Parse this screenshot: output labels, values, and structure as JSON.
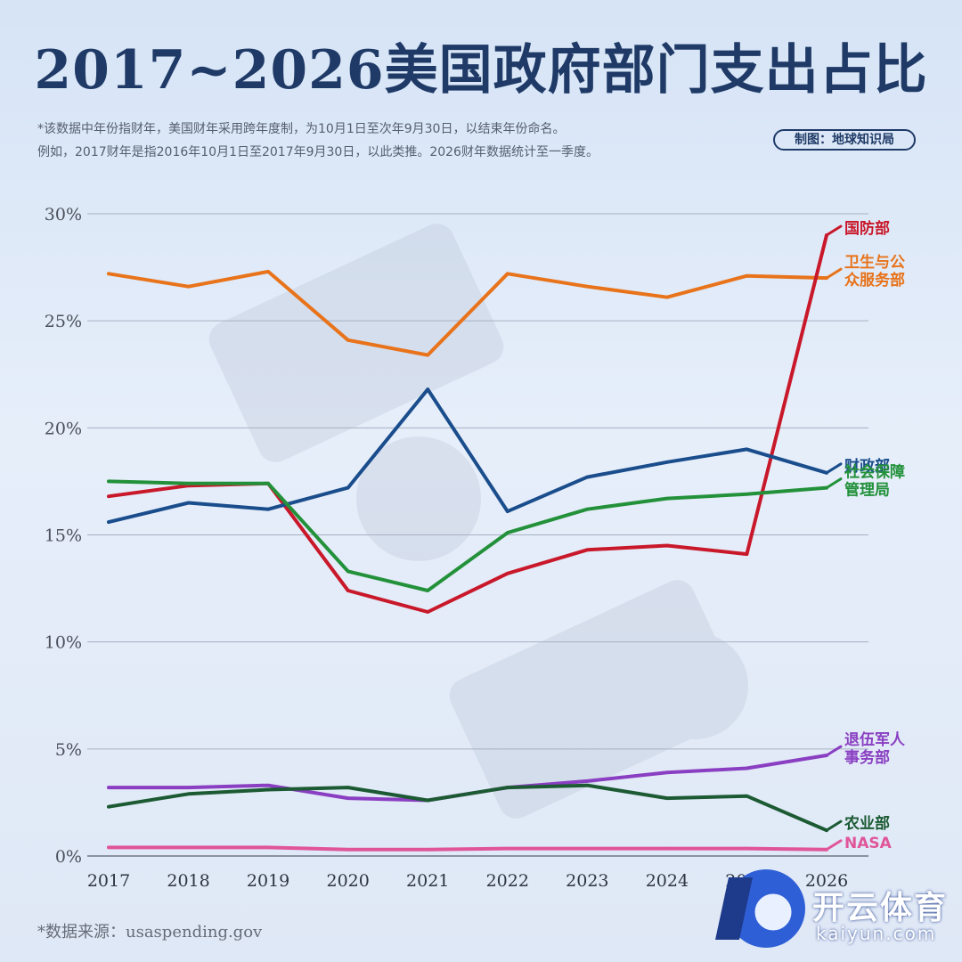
{
  "header": {
    "title": "2017~2026美国政府部门支出占比",
    "note_line1": "*该数据中年份指财年，美国财年采用跨年度制，为10月1日至次年9月30日，以结束年份命名。",
    "note_line2": "例如，2017财年是指2016年10月1日至2017年9月30日，以此类推。2026财年数据统计至一季度。",
    "credit": "制图：地球知识局"
  },
  "footer": {
    "source": "*数据来源：usaspending.gov",
    "logo_text": "开云体育",
    "logo_url": "kaiyun.com"
  },
  "chart_data": {
    "type": "line",
    "x": [
      "2017",
      "2018",
      "2019",
      "2020",
      "2021",
      "2022",
      "2023",
      "2024",
      "2025",
      "2026"
    ],
    "y_ticks": [
      "0%",
      "5%",
      "10%",
      "15%",
      "20%",
      "25%",
      "30%"
    ],
    "ylim": [
      0,
      30
    ],
    "grid": true,
    "series": [
      {
        "name": "卫生与公众服务部",
        "label_lines": [
          "卫生与公",
          "众服务部"
        ],
        "color": "#e8731a",
        "values": [
          27.2,
          26.6,
          27.3,
          24.1,
          23.4,
          27.2,
          26.6,
          26.1,
          27.1,
          27.0
        ]
      },
      {
        "name": "国防部",
        "label_lines": [
          "国防部"
        ],
        "color": "#c8182a",
        "values": [
          16.8,
          17.3,
          17.4,
          12.4,
          11.4,
          13.2,
          14.3,
          14.5,
          14.1,
          29.0
        ]
      },
      {
        "name": "财政部",
        "label_lines": [
          "财政部"
        ],
        "color": "#1a4d8c",
        "values": [
          15.6,
          16.5,
          16.2,
          17.2,
          21.8,
          16.1,
          17.7,
          18.4,
          19.0,
          17.9
        ]
      },
      {
        "name": "社会保障管理局",
        "label_lines": [
          "社会保障",
          "管理局"
        ],
        "color": "#23913a",
        "values": [
          17.5,
          17.4,
          17.4,
          13.3,
          12.4,
          15.1,
          16.2,
          16.7,
          16.9,
          17.2
        ]
      },
      {
        "name": "退伍军人事务部",
        "label_lines": [
          "退伍军人",
          "事务部"
        ],
        "color": "#8a3fc2",
        "values": [
          3.2,
          3.2,
          3.3,
          2.7,
          2.6,
          3.2,
          3.5,
          3.9,
          4.1,
          4.7
        ]
      },
      {
        "name": "农业部",
        "label_lines": [
          "农业部"
        ],
        "color": "#1b5a32",
        "values": [
          2.3,
          2.9,
          3.1,
          3.2,
          2.6,
          3.2,
          3.3,
          2.7,
          2.8,
          1.2
        ]
      },
      {
        "name": "NASA",
        "label_lines": [
          "NASA"
        ],
        "color": "#e0559a",
        "values": [
          0.4,
          0.4,
          0.4,
          0.3,
          0.3,
          0.35,
          0.35,
          0.35,
          0.35,
          0.3
        ]
      }
    ]
  }
}
